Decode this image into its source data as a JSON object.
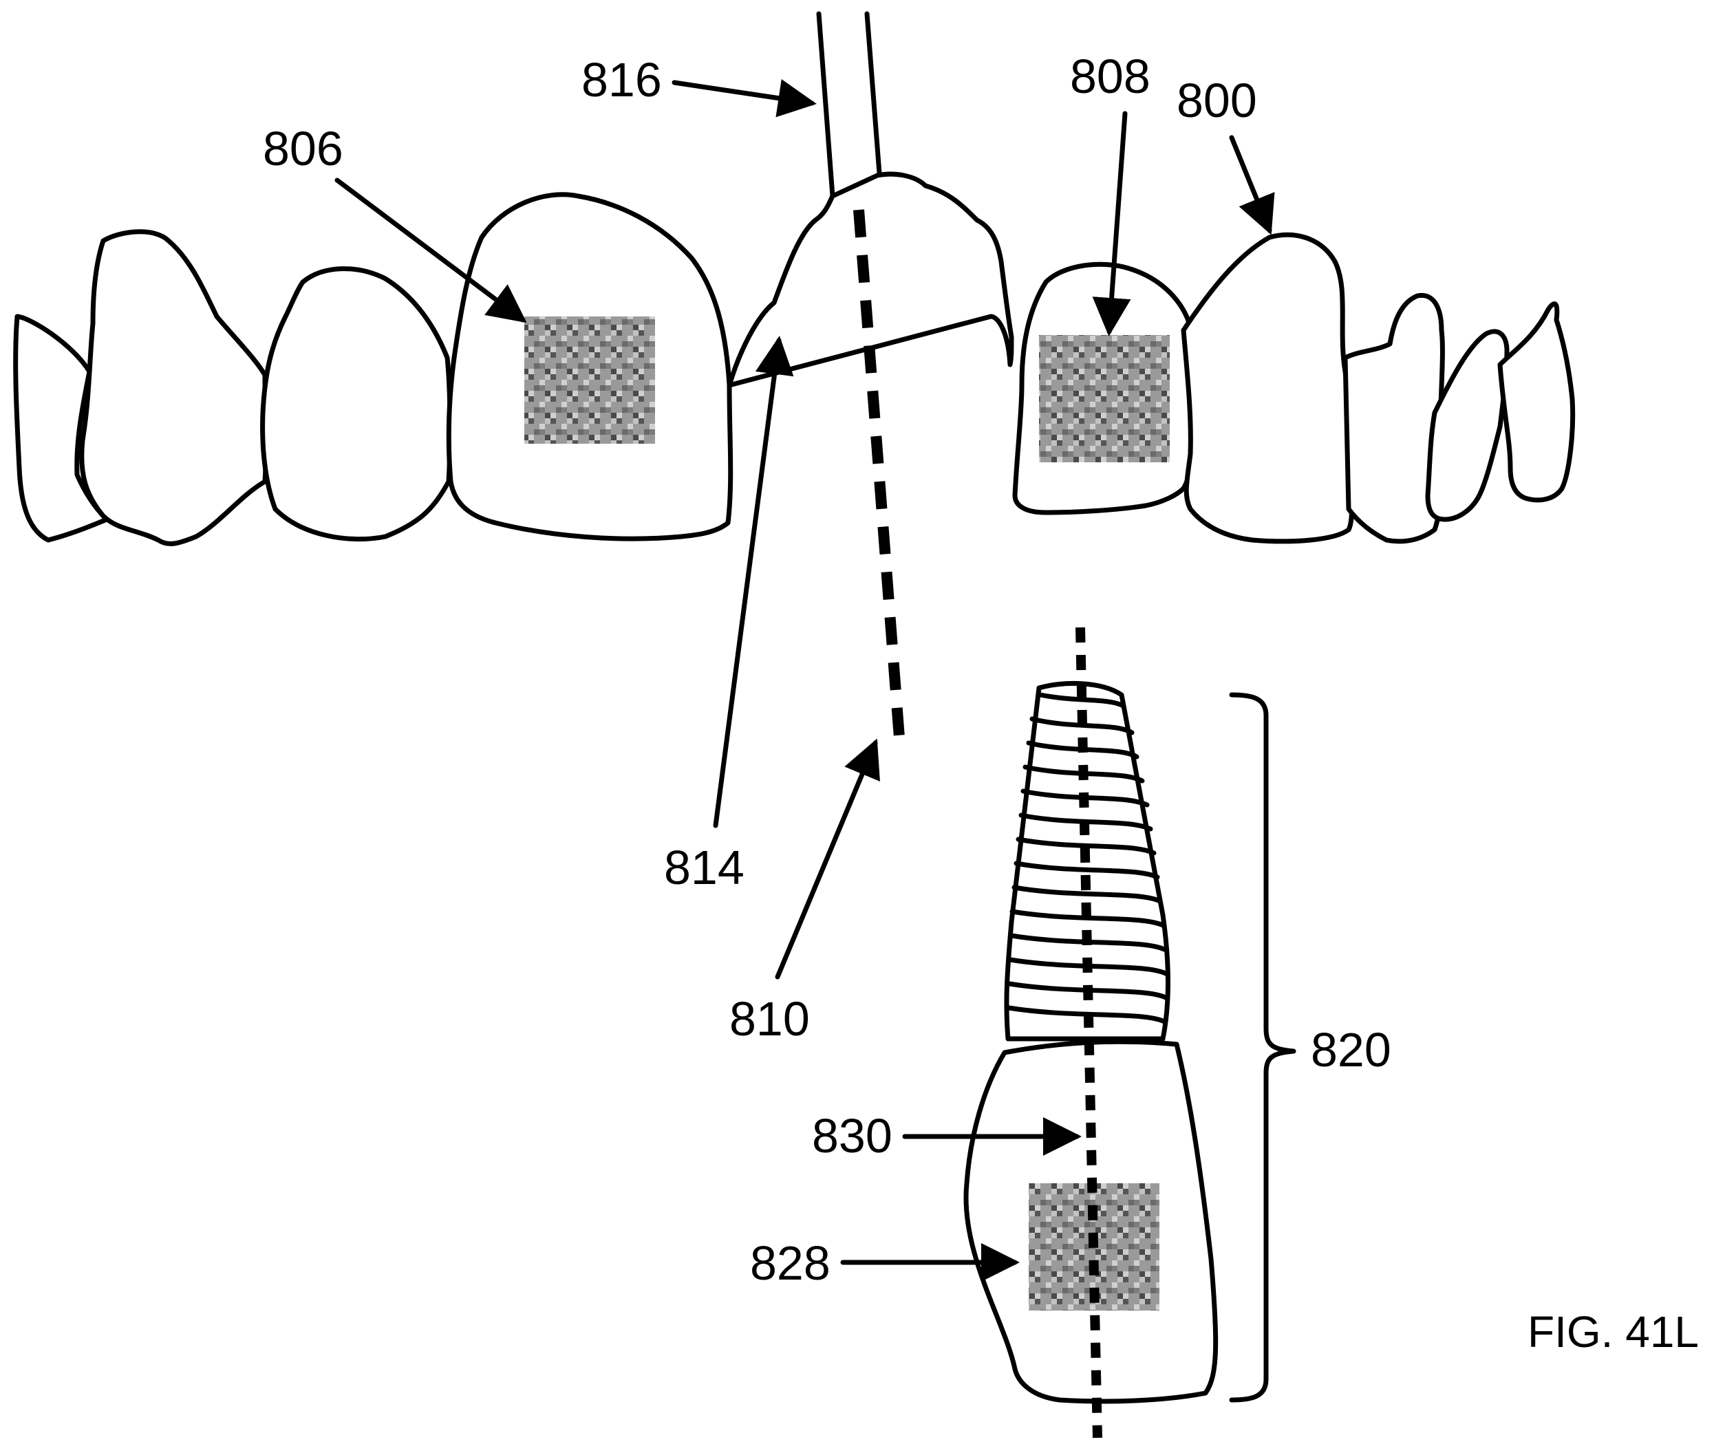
{
  "figure": {
    "caption": "FIG. 41L",
    "colors": {
      "line": "#000000",
      "background": "#ffffff",
      "marker_dark": "#555555",
      "marker_light": "#bdbdbd"
    },
    "references": {
      "r800": "800",
      "r806": "806",
      "r808": "808",
      "r810": "810",
      "r814": "814",
      "r816": "816",
      "r820": "820",
      "r828": "828",
      "r830": "830"
    }
  }
}
